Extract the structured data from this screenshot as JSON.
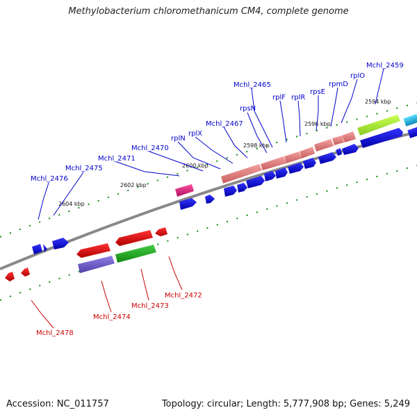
{
  "title": "Methylobacterium chloromethanicum CM4, complete genome",
  "accession": "Accession: NC_011757",
  "topology": "Topology: circular; Length: 5,777,908 bp; Genes: 5,249",
  "ticks": [
    "2594 kbp",
    "2596 kbp",
    "2598 kbp",
    "2600 kbp",
    "2602 kbp",
    "2604 kbp"
  ],
  "labels_upper": [
    "Mchl_2459",
    "rplO",
    "rpmD",
    "rpsE",
    "rplR",
    "rplF",
    "rpsN",
    "Mchl_2465",
    "Mchl_2467",
    "rplX",
    "rplN",
    "Mchl_2470",
    "Mchl_2471",
    "Mchl_2475",
    "Mchl_2476"
  ],
  "labels_lower": [
    "Mchl_2472",
    "Mchl_2473",
    "Mchl_2474",
    "Mchl_2478"
  ],
  "colors": {
    "forward_label": "#0000cc",
    "reverse_label": "#cc0000",
    "blue": "#0000e0",
    "red": "#e00000",
    "salmon": "#e88080",
    "green": "#22aa22",
    "lime": "#aaee33",
    "purple": "#7060cc",
    "magenta": "#e0207a",
    "cyan": "#22aadd",
    "backbone": "#888888",
    "tick": "#118811"
  }
}
